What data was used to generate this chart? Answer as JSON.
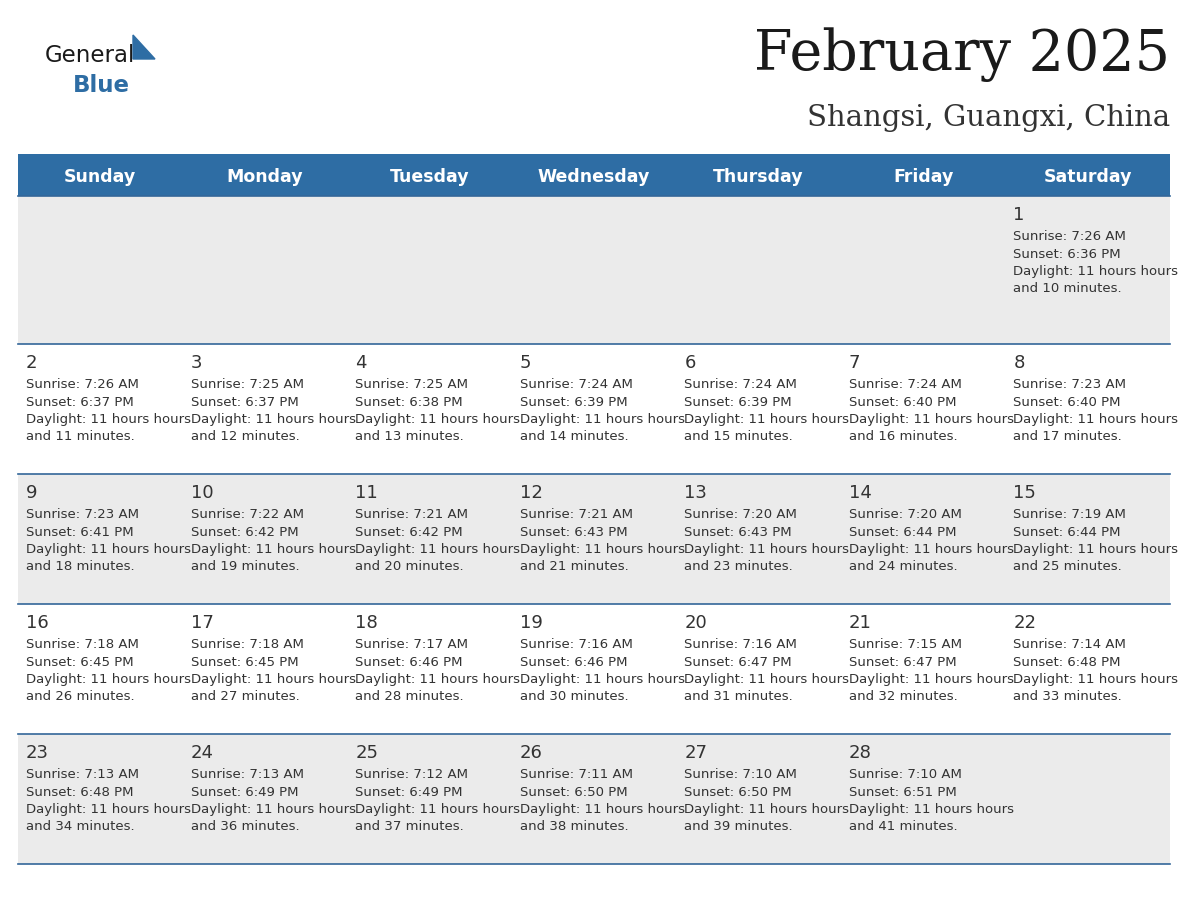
{
  "title": "February 2025",
  "subtitle": "Shangsi, Guangxi, China",
  "header_bg_color": "#2E6DA4",
  "header_text_color": "#FFFFFF",
  "row_bg_colors": [
    "#EBEBEB",
    "#FFFFFF",
    "#EBEBEB",
    "#FFFFFF",
    "#EBEBEB"
  ],
  "day_headers": [
    "Sunday",
    "Monday",
    "Tuesday",
    "Wednesday",
    "Thursday",
    "Friday",
    "Saturday"
  ],
  "title_color": "#1a1a1a",
  "subtitle_color": "#333333",
  "cell_text_color": "#333333",
  "day_num_color": "#333333",
  "divider_color": "#336699",
  "logo_general_color": "#1a1a1a",
  "logo_blue_color": "#2E6DA4",
  "logo_triangle_color": "#2E6DA4",
  "calendar_data": [
    [
      null,
      null,
      null,
      null,
      null,
      null,
      {
        "day": 1,
        "sunrise": "7:26 AM",
        "sunset": "6:36 PM",
        "daylight": "11 hours and 10 minutes."
      }
    ],
    [
      {
        "day": 2,
        "sunrise": "7:26 AM",
        "sunset": "6:37 PM",
        "daylight": "11 hours and 11 minutes."
      },
      {
        "day": 3,
        "sunrise": "7:25 AM",
        "sunset": "6:37 PM",
        "daylight": "11 hours and 12 minutes."
      },
      {
        "day": 4,
        "sunrise": "7:25 AM",
        "sunset": "6:38 PM",
        "daylight": "11 hours and 13 minutes."
      },
      {
        "day": 5,
        "sunrise": "7:24 AM",
        "sunset": "6:39 PM",
        "daylight": "11 hours and 14 minutes."
      },
      {
        "day": 6,
        "sunrise": "7:24 AM",
        "sunset": "6:39 PM",
        "daylight": "11 hours and 15 minutes."
      },
      {
        "day": 7,
        "sunrise": "7:24 AM",
        "sunset": "6:40 PM",
        "daylight": "11 hours and 16 minutes."
      },
      {
        "day": 8,
        "sunrise": "7:23 AM",
        "sunset": "6:40 PM",
        "daylight": "11 hours and 17 minutes."
      }
    ],
    [
      {
        "day": 9,
        "sunrise": "7:23 AM",
        "sunset": "6:41 PM",
        "daylight": "11 hours and 18 minutes."
      },
      {
        "day": 10,
        "sunrise": "7:22 AM",
        "sunset": "6:42 PM",
        "daylight": "11 hours and 19 minutes."
      },
      {
        "day": 11,
        "sunrise": "7:21 AM",
        "sunset": "6:42 PM",
        "daylight": "11 hours and 20 minutes."
      },
      {
        "day": 12,
        "sunrise": "7:21 AM",
        "sunset": "6:43 PM",
        "daylight": "11 hours and 21 minutes."
      },
      {
        "day": 13,
        "sunrise": "7:20 AM",
        "sunset": "6:43 PM",
        "daylight": "11 hours and 23 minutes."
      },
      {
        "day": 14,
        "sunrise": "7:20 AM",
        "sunset": "6:44 PM",
        "daylight": "11 hours and 24 minutes."
      },
      {
        "day": 15,
        "sunrise": "7:19 AM",
        "sunset": "6:44 PM",
        "daylight": "11 hours and 25 minutes."
      }
    ],
    [
      {
        "day": 16,
        "sunrise": "7:18 AM",
        "sunset": "6:45 PM",
        "daylight": "11 hours and 26 minutes."
      },
      {
        "day": 17,
        "sunrise": "7:18 AM",
        "sunset": "6:45 PM",
        "daylight": "11 hours and 27 minutes."
      },
      {
        "day": 18,
        "sunrise": "7:17 AM",
        "sunset": "6:46 PM",
        "daylight": "11 hours and 28 minutes."
      },
      {
        "day": 19,
        "sunrise": "7:16 AM",
        "sunset": "6:46 PM",
        "daylight": "11 hours and 30 minutes."
      },
      {
        "day": 20,
        "sunrise": "7:16 AM",
        "sunset": "6:47 PM",
        "daylight": "11 hours and 31 minutes."
      },
      {
        "day": 21,
        "sunrise": "7:15 AM",
        "sunset": "6:47 PM",
        "daylight": "11 hours and 32 minutes."
      },
      {
        "day": 22,
        "sunrise": "7:14 AM",
        "sunset": "6:48 PM",
        "daylight": "11 hours and 33 minutes."
      }
    ],
    [
      {
        "day": 23,
        "sunrise": "7:13 AM",
        "sunset": "6:48 PM",
        "daylight": "11 hours and 34 minutes."
      },
      {
        "day": 24,
        "sunrise": "7:13 AM",
        "sunset": "6:49 PM",
        "daylight": "11 hours and 36 minutes."
      },
      {
        "day": 25,
        "sunrise": "7:12 AM",
        "sunset": "6:49 PM",
        "daylight": "11 hours and 37 minutes."
      },
      {
        "day": 26,
        "sunrise": "7:11 AM",
        "sunset": "6:50 PM",
        "daylight": "11 hours and 38 minutes."
      },
      {
        "day": 27,
        "sunrise": "7:10 AM",
        "sunset": "6:50 PM",
        "daylight": "11 hours and 39 minutes."
      },
      {
        "day": 28,
        "sunrise": "7:10 AM",
        "sunset": "6:51 PM",
        "daylight": "11 hours and 41 minutes."
      },
      null
    ]
  ]
}
